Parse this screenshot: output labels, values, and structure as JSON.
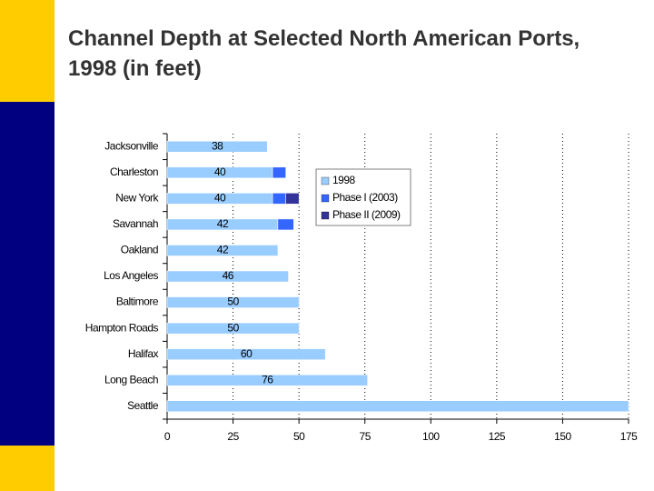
{
  "chart_data": {
    "type": "stacked-bar-horizontal",
    "title": "Channel Depth at Selected North American Ports, 1998 (in feet)",
    "categories": [
      "Jacksonville",
      "Charleston",
      "New York",
      "Savannah",
      "Oakland",
      "Los Angeles",
      "Baltimore",
      "Hampton Roads",
      "Halifax",
      "Long Beach",
      "Seattle"
    ],
    "series": [
      {
        "name": "1998",
        "color": "#99ccff",
        "values": [
          38,
          40,
          40,
          42,
          42,
          46,
          50,
          50,
          60,
          76,
          175
        ],
        "value_labels": [
          "38",
          "40",
          "40",
          "42",
          "42",
          "46",
          "50",
          "50",
          "60",
          "76",
          null
        ]
      },
      {
        "name": "Phase I (2003)",
        "color": "#3366ff",
        "values": [
          null,
          5,
          5,
          6,
          null,
          null,
          null,
          null,
          null,
          null,
          null
        ]
      },
      {
        "name": "Phase II (2009)",
        "color": "#333399",
        "values": [
          null,
          null,
          5,
          null,
          null,
          null,
          null,
          null,
          null,
          null,
          null
        ]
      }
    ],
    "xlim": [
      0,
      175
    ],
    "xticks": [
      0,
      25,
      50,
      75,
      100,
      125,
      150,
      175
    ],
    "grid": true
  }
}
